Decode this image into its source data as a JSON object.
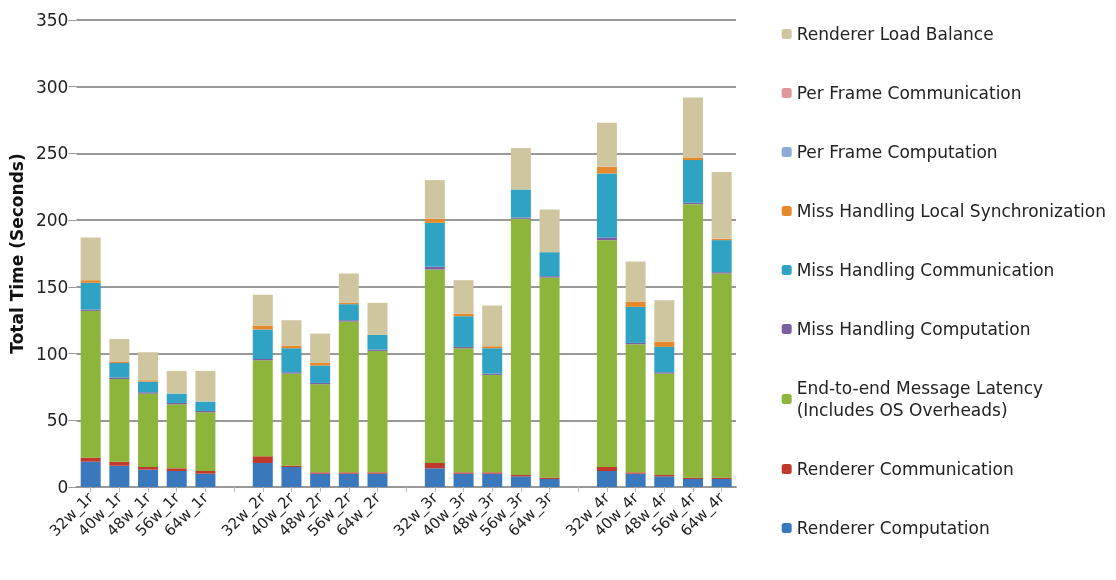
{
  "chart_data": {
    "type": "bar",
    "stacked": true,
    "ylabel": "Total Time (Seconds)",
    "categories": [
      "32w_1r",
      "40w_1r",
      "48w_1r",
      "56w_1r",
      "64w_1r",
      null,
      "32w_2r",
      "40w_2r",
      "48w_2r",
      "56w_2r",
      "64w_2r",
      null,
      "32w_3r",
      "40w_3r",
      "48w_3r",
      "56w_3r",
      "64w_3r",
      null,
      "32w_4r",
      "40w_4r",
      "48w_4r",
      "56w_4r",
      "64w_4r"
    ],
    "series": [
      {
        "name": "Renderer Computation",
        "color": "#3a78be",
        "values": [
          19,
          16,
          13,
          12,
          10,
          null,
          18,
          15,
          10,
          10,
          10,
          null,
          14,
          10,
          10,
          8,
          6,
          null,
          12,
          10,
          8,
          6,
          6
        ]
      },
      {
        "name": "Renderer Communication",
        "color": "#c0392b",
        "values": [
          3,
          3,
          2,
          2,
          2,
          null,
          5,
          1,
          1,
          1,
          1,
          null,
          4,
          1,
          1,
          1,
          1,
          null,
          3,
          1,
          1,
          1,
          1
        ]
      },
      {
        "name": "End-to-end Message Latency\n(Includes OS Overheads)",
        "color": "#8db53c",
        "values": [
          110,
          62,
          55,
          48,
          44,
          null,
          72,
          69,
          66,
          113,
          91,
          null,
          145,
          93,
          73,
          192,
          150,
          null,
          170,
          96,
          76,
          205,
          153
        ]
      },
      {
        "name": "Miss Handling Computation",
        "color": "#7b5fa3",
        "values": [
          1,
          1,
          1,
          1,
          1,
          null,
          1,
          1,
          1,
          1,
          1,
          null,
          2,
          1,
          1,
          1,
          1,
          null,
          2,
          1,
          1,
          1,
          1
        ]
      },
      {
        "name": "Miss Handling Communication",
        "color": "#2ea3c4",
        "values": [
          20,
          11,
          8,
          7,
          7,
          null,
          22,
          18,
          13,
          12,
          11,
          null,
          33,
          23,
          19,
          21,
          18,
          null,
          48,
          27,
          19,
          32,
          24
        ]
      },
      {
        "name": "Miss Handling Local Synchronization",
        "color": "#e58a2c",
        "values": [
          2,
          1,
          1,
          null,
          null,
          null,
          3,
          2,
          2,
          1,
          null,
          null,
          3,
          2,
          1.5,
          null,
          null,
          null,
          5,
          4,
          4,
          2,
          1
        ]
      },
      {
        "name": "Per Frame Computation",
        "color": "#8eaad8",
        "values": [
          null,
          null,
          null,
          null,
          null,
          null,
          null,
          null,
          null,
          null,
          null,
          null,
          null,
          null,
          null,
          null,
          null,
          null,
          null,
          null,
          null,
          null,
          null
        ]
      },
      {
        "name": "Per Frame Communication",
        "color": "#e0959b",
        "values": [
          null,
          null,
          null,
          null,
          null,
          null,
          null,
          null,
          null,
          null,
          null,
          null,
          null,
          null,
          null,
          null,
          null,
          null,
          null,
          null,
          null,
          null,
          null
        ]
      },
      {
        "name": "Renderer Load Balance",
        "color": "#cfc6a0",
        "values": [
          32,
          17,
          21,
          17,
          23,
          null,
          23,
          19,
          22,
          22,
          24,
          null,
          29,
          25,
          30.5,
          31,
          32,
          null,
          33,
          30,
          31,
          45,
          50
        ]
      }
    ],
    "ylim": [
      0,
      350
    ],
    "yticks": [
      0,
      50,
      100,
      150,
      200,
      250,
      300,
      350
    ],
    "grid": "y",
    "legend": "right"
  }
}
